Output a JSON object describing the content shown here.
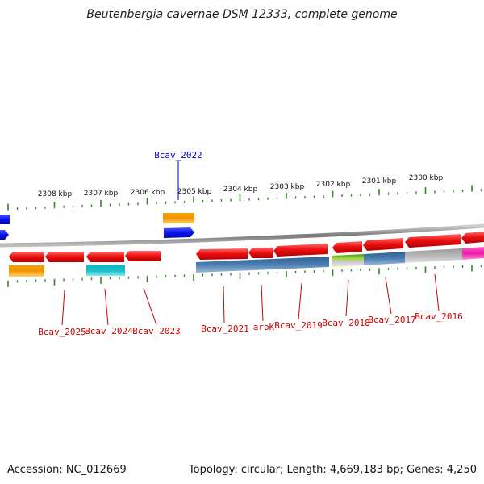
{
  "title": "Beutenbergia cavernae DSM 12333, complete genome",
  "footer": {
    "accession": "Accession: NC_012669",
    "summary": "Topology: circular; Length: 4,669,183 bp; Genes: 4,250"
  },
  "colors": {
    "backbone": "#8a8a8a",
    "tick": "#2e8b1f",
    "cds": "#ee1111",
    "label_red": "#cc0000",
    "label_blue": "#0000cc",
    "blue_feature": "#0a14ee",
    "orange": "#f39200",
    "cyan": "#19c4cc",
    "steel": "#4b7fb1",
    "lime": "#a7d93a",
    "grey": "#b7b7b7",
    "magenta": "#ee1aa8"
  },
  "ruler": {
    "labels": [
      "2308 kbp",
      "2307 kbp",
      "2306 kbp",
      "2305 kbp",
      "2304 kbp",
      "2303 kbp",
      "2302 kbp",
      "2301 kbp",
      "2300 kbp"
    ]
  },
  "gene_labels": [
    {
      "text": "Bcav_2022",
      "color": "blue"
    },
    {
      "text": "Bcav_2025",
      "color": "red"
    },
    {
      "text": "Bcav_2024",
      "color": "red"
    },
    {
      "text": "Bcav_2023",
      "color": "red"
    },
    {
      "text": "Bcav_2021",
      "color": "red"
    },
    {
      "text": "aroK",
      "color": "red"
    },
    {
      "text": "Bcav_2019",
      "color": "red"
    },
    {
      "text": "Bcav_2018",
      "color": "red"
    },
    {
      "text": "Bcav_2017",
      "color": "red"
    },
    {
      "text": "Bcav_2016",
      "color": "red"
    }
  ]
}
